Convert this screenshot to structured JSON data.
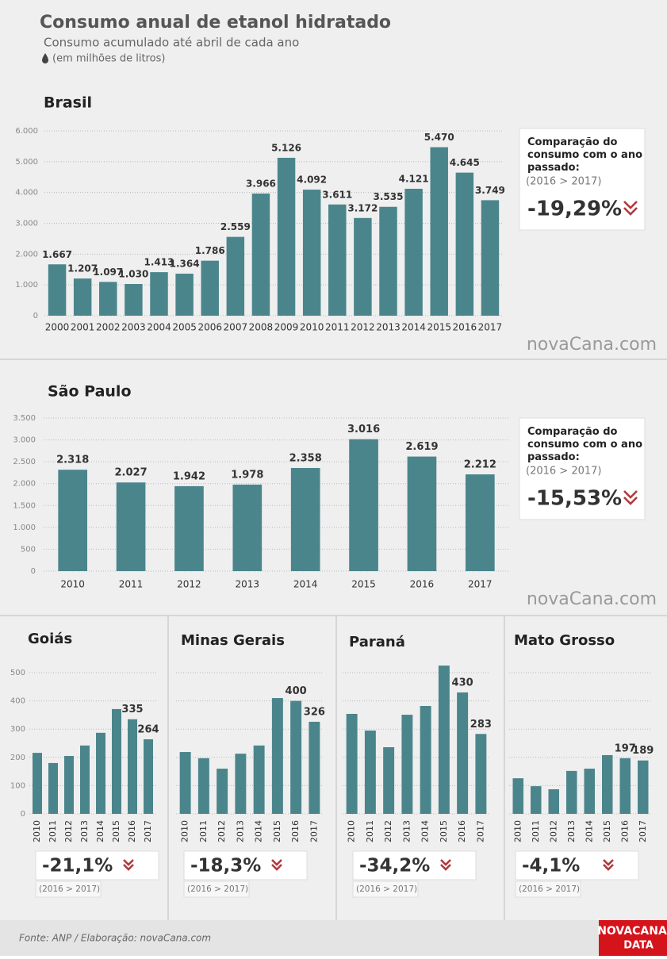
{
  "header": {
    "title": "Consumo anual de etanol hidratado",
    "subtitle": "Consumo acumulado até abril de cada ano",
    "unit": "(em milhões de litros)"
  },
  "chart_data": [
    {
      "type": "bar",
      "title": "Brasil",
      "categories": [
        "2000",
        "2001",
        "2002",
        "2003",
        "2004",
        "2005",
        "2006",
        "2007",
        "2008",
        "2009",
        "2010",
        "2011",
        "2012",
        "2013",
        "2014",
        "2015",
        "2016",
        "2017"
      ],
      "values": [
        1667,
        1207,
        1097,
        1030,
        1413,
        1364,
        1786,
        2559,
        3966,
        5126,
        4092,
        3611,
        3172,
        3535,
        4121,
        5470,
        4645,
        3749
      ],
      "value_labels": [
        "1.667",
        "1.207",
        "1.097",
        "1.030",
        "1.413",
        "1.364",
        "1.786",
        "2.559",
        "3.966",
        "5.126",
        "4.092",
        "3.611",
        "3.172",
        "3.535",
        "4.121",
        "5.470",
        "4.645",
        "3.749"
      ],
      "color": "#4b858c",
      "ylim": [
        0,
        6000
      ],
      "yticks": [
        0,
        {
          "value": 1000,
          "label": "1.000"
        },
        {
          "value": 2000,
          "label": "2.000"
        },
        {
          "value": 3000,
          "label": "3.000"
        },
        {
          "value": 4000,
          "label": "4.000"
        },
        {
          "value": 5000,
          "label": "5.000"
        },
        {
          "value": 6000,
          "label": "6.000"
        }
      ],
      "grid": true,
      "tick_labels": true,
      "comparison": {
        "heading": "Comparação do consumo com o ano passado:",
        "period": "(2016 > 2017)",
        "value": "-19,29%"
      }
    },
    {
      "type": "bar",
      "title": "São Paulo",
      "categories": [
        "2010",
        "2011",
        "2012",
        "2013",
        "2014",
        "2015",
        "2016",
        "2017"
      ],
      "values": [
        2318,
        2027,
        1942,
        1978,
        2358,
        3016,
        2619,
        2212
      ],
      "value_labels": [
        "2.318",
        "2.027",
        "1.942",
        "1.978",
        "2.358",
        "3.016",
        "2.619",
        "2.212"
      ],
      "color": "#4b858c",
      "ylim": [
        0,
        3500
      ],
      "yticks": [
        0,
        500,
        {
          "value": 1000,
          "label": "1.000"
        },
        {
          "value": 1500,
          "label": "1.500"
        },
        {
          "value": 2000,
          "label": "2.000"
        },
        {
          "value": 2500,
          "label": "2.500"
        },
        {
          "value": 3000,
          "label": "3.000"
        },
        {
          "value": 3500,
          "label": "3.500"
        }
      ],
      "grid": true,
      "tick_labels": true,
      "comparison": {
        "heading": "Comparação do consumo com o ano passado:",
        "period": "(2016 > 2017)",
        "value": "-15,53%"
      }
    },
    {
      "type": "bar",
      "title": "Goiás",
      "categories": [
        "2010",
        "2011",
        "2012",
        "2013",
        "2014",
        "2015",
        "2016",
        "2017"
      ],
      "values": [
        216,
        180,
        205,
        242,
        287,
        371,
        335,
        264
      ],
      "value_labels": [
        null,
        null,
        null,
        null,
        null,
        null,
        "335",
        "264"
      ],
      "color": "#4b858c",
      "ylim": [
        0,
        500
      ],
      "yticks": [
        0,
        100,
        200,
        300,
        400,
        500
      ],
      "grid": true,
      "tick_labels": true,
      "comparison": {
        "period": "(2016 > 2017)",
        "value": "-21,1%"
      }
    },
    {
      "type": "bar",
      "title": "Minas Gerais",
      "categories": [
        "2010",
        "2011",
        "2012",
        "2013",
        "2014",
        "2015",
        "2016",
        "2017"
      ],
      "values": [
        219,
        197,
        160,
        213,
        242,
        410,
        400,
        326
      ],
      "value_labels": [
        null,
        null,
        null,
        null,
        null,
        null,
        "400",
        "326"
      ],
      "color": "#4b858c",
      "ylim": [
        0,
        500
      ],
      "yticks": [
        0,
        100,
        200,
        300,
        400,
        500
      ],
      "grid": true,
      "tick_labels": false,
      "comparison": {
        "period": "(2016 > 2017)",
        "value": "-18,3%"
      }
    },
    {
      "type": "bar",
      "title": "Paraná",
      "categories": [
        "2010",
        "2011",
        "2012",
        "2013",
        "2014",
        "2015",
        "2016",
        "2017"
      ],
      "values": [
        354,
        295,
        236,
        351,
        382,
        525,
        430,
        283
      ],
      "value_labels": [
        null,
        null,
        null,
        null,
        null,
        null,
        "430",
        "283"
      ],
      "color": "#4b858c",
      "ylim": [
        0,
        500
      ],
      "yticks": [
        0,
        100,
        200,
        300,
        400,
        500
      ],
      "grid": true,
      "tick_labels": false,
      "comparison": {
        "period": "(2016 > 2017)",
        "value": "-34,2%"
      }
    },
    {
      "type": "bar",
      "title": "Mato Grosso",
      "categories": [
        "2010",
        "2011",
        "2012",
        "2013",
        "2014",
        "2015",
        "2016",
        "2017"
      ],
      "values": [
        126,
        98,
        87,
        152,
        160,
        208,
        197,
        189
      ],
      "value_labels": [
        null,
        null,
        null,
        null,
        null,
        null,
        "197",
        "189"
      ],
      "color": "#4b858c",
      "ylim": [
        0,
        500
      ],
      "yticks": [
        0,
        100,
        200,
        300,
        400,
        500
      ],
      "grid": true,
      "tick_labels": false,
      "comparison": {
        "period": "(2016 > 2017)",
        "value": "-4,1%"
      }
    }
  ],
  "watermark": "novaCana.com",
  "footer": {
    "source": "Fonte: ANP / Elaboração: novaCana.com",
    "logo": [
      "NOVACANA",
      "DATA"
    ]
  }
}
